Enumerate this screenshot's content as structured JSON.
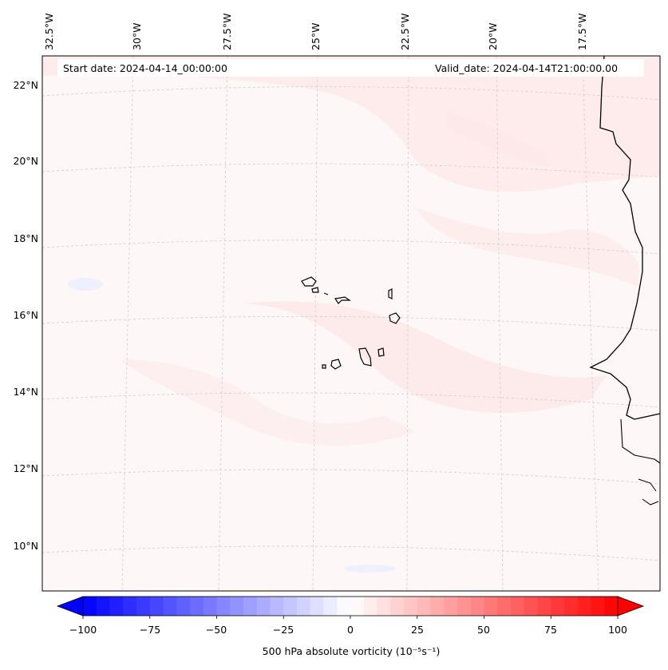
{
  "header": {
    "start_date": "Start date: 2024-04-14_00:00:00",
    "valid_date": "Valid_date: 2024-04-14T21:00:00.00"
  },
  "map": {
    "projection": "lambert conformal",
    "longitude_labels": [
      "32.5°W",
      "30°W",
      "27.5°W",
      "25°W",
      "22.5°W",
      "20°W",
      "17.5°W"
    ],
    "latitude_labels": [
      "22°N",
      "20°N",
      "18°N",
      "16°N",
      "14°N",
      "12°N",
      "10°N"
    ],
    "field": "500 hPa absolute vorticity",
    "features": [
      "West African coastline",
      "Cape Verde islands"
    ]
  },
  "colorbar": {
    "label": "500 hPa absolute vorticity (10⁻⁵s⁻¹)",
    "min": -100,
    "max": 100,
    "step": 5,
    "tick_labels": [
      "−100",
      "−75",
      "−50",
      "−25",
      "0",
      "25",
      "50",
      "75",
      "100"
    ],
    "colors": {
      "negative": "#0000ff",
      "zero": "#ffffff",
      "positive": "#ff0000"
    }
  }
}
